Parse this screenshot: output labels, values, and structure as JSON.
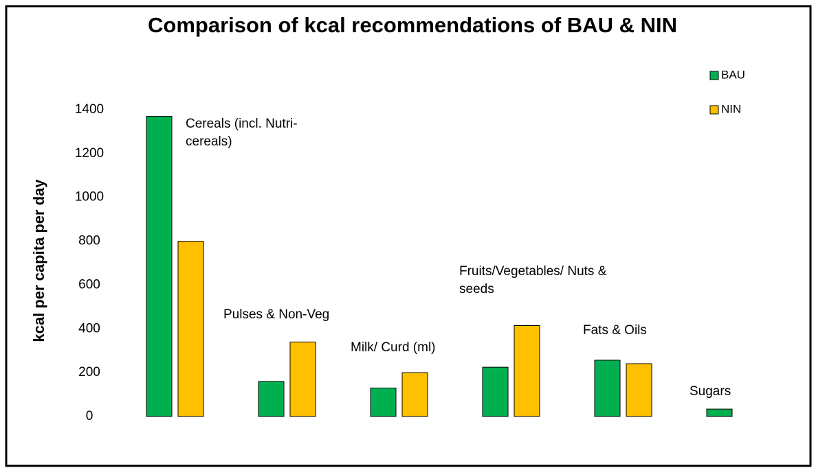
{
  "chart_data": {
    "type": "bar",
    "title": "Comparison of kcal recommendations of BAU & NIN",
    "y_label": "kcal per capita  per day",
    "categories": [
      "Cereals (incl. Nutri-cereals)",
      "Pulses & Non-Veg",
      "Milk/ Curd (ml)",
      "Fruits/Vegetables/ Nuts & seeds",
      "Fats & Oils",
      "Sugars"
    ],
    "series": [
      {
        "name": "BAU",
        "color": "#00b050",
        "values": [
          1370,
          160,
          130,
          225,
          257,
          34
        ]
      },
      {
        "name": "NIN",
        "color": "#ffc000",
        "values": [
          800,
          340,
          200,
          415,
          241,
          null
        ]
      }
    ],
    "ylim": [
      0,
      1400
    ],
    "yticks": [
      0,
      200,
      400,
      600,
      800,
      1000,
      1200,
      1400
    ],
    "grid": false,
    "legend": "upper right"
  }
}
